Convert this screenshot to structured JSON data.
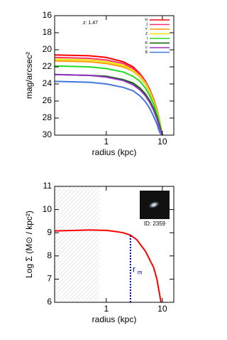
{
  "chart_data": [
    {
      "type": "line",
      "annotation": "z: 1.47",
      "xlabel": "radius (kpc)",
      "ylabel": "mag/arcsec²",
      "x": [
        0.12,
        0.5,
        1,
        2,
        3,
        4,
        5,
        6,
        7,
        8,
        9,
        10
      ],
      "xlim": [
        0.12,
        16
      ],
      "xticks": [
        1,
        10
      ],
      "x_log": true,
      "ylim": [
        16,
        30
      ],
      "yticks": [
        16,
        18,
        20,
        22,
        24,
        26,
        28,
        30
      ],
      "invert_y": true,
      "legend": "upper right",
      "series": [
        {
          "name": "H",
          "color": "#ff0000",
          "values": [
            20.6,
            20.7,
            20.9,
            21.4,
            22.0,
            22.8,
            23.7,
            24.7,
            25.8,
            27.0,
            28.4,
            29.9
          ]
        },
        {
          "name": "J",
          "color": "#ff3070",
          "values": [
            20.9,
            21.0,
            21.2,
            21.6,
            22.2,
            22.9,
            23.8,
            24.8,
            25.9,
            27.1,
            28.5,
            30.0
          ]
        },
        {
          "name": "Y",
          "color": "#ff9900",
          "values": [
            21.3,
            21.4,
            21.6,
            22.0,
            22.5,
            23.2,
            24.0,
            25.0,
            26.0,
            27.2,
            28.5,
            29.9
          ]
        },
        {
          "name": "Z",
          "color": "#e8e800",
          "values": [
            21.1,
            21.2,
            21.4,
            21.8,
            22.4,
            23.1,
            23.9,
            24.9,
            26.0,
            27.2,
            28.5,
            29.8
          ]
        },
        {
          "name": "I",
          "color": "#22dd22",
          "values": [
            21.9,
            22.0,
            22.2,
            22.6,
            23.1,
            23.7,
            24.5,
            25.4,
            26.4,
            27.5,
            28.7,
            30.0
          ]
        },
        {
          "name": "R",
          "color": "#006400",
          "values": [
            22.9,
            23.0,
            23.1,
            23.5,
            23.9,
            24.5,
            25.2,
            26.0,
            26.9,
            27.9,
            29.0,
            30.0
          ]
        },
        {
          "name": "V",
          "color": "#9933cc",
          "values": [
            22.9,
            23.0,
            23.2,
            23.6,
            24.1,
            24.7,
            25.4,
            26.2,
            27.1,
            28.1,
            29.2,
            30.0
          ]
        },
        {
          "name": "B",
          "color": "#4477dd",
          "values": [
            23.7,
            23.8,
            24.0,
            24.4,
            24.8,
            25.4,
            26.1,
            26.9,
            27.8,
            28.7,
            29.7,
            30.0
          ]
        }
      ]
    },
    {
      "type": "line",
      "xlabel": "radius (kpc)",
      "ylabel": "Log Σ (M⊙ / kpc²)",
      "x": [
        0.12,
        0.3,
        0.5,
        1,
        1.5,
        2,
        2.7,
        3.5,
        5,
        7,
        8,
        9,
        9.5
      ],
      "xlim": [
        0.12,
        16
      ],
      "xticks": [
        1,
        10
      ],
      "x_log": true,
      "ylim": [
        6,
        11
      ],
      "yticks": [
        6,
        7,
        8,
        9,
        10,
        11
      ],
      "series": [
        {
          "color": "#ff0000",
          "values": [
            9.08,
            9.1,
            9.12,
            9.1,
            9.05,
            9.0,
            8.9,
            8.7,
            8.2,
            7.5,
            7.0,
            6.3,
            6.0
          ]
        }
      ],
      "shaded_xmax": 0.75,
      "rm": 2.7,
      "rm_label": "r",
      "rm_subscript": "m",
      "rm_color": "#0000cc",
      "inset_label": "ID: 2359"
    }
  ]
}
